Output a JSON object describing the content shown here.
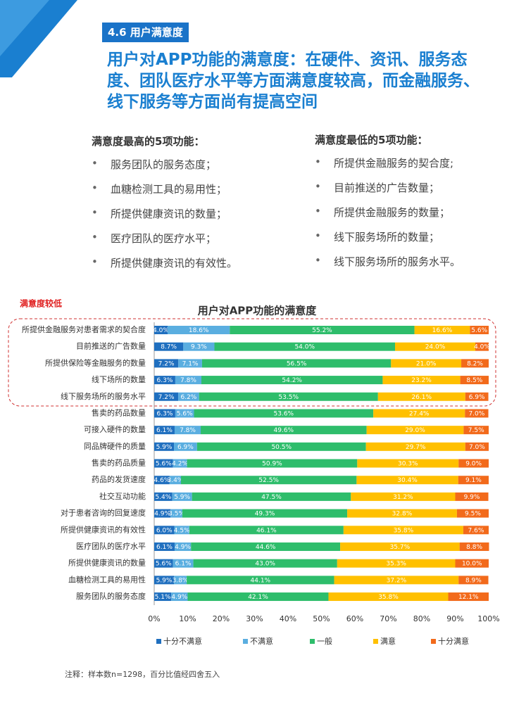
{
  "header": {
    "tag": "4.6 用户满意度",
    "headline": "用户对APP功能的满意度：在硬件、资讯、服务态度、团队医疗水平等方面满意度较高，而金融服务、线下服务等方面尚有提高空间"
  },
  "lists": [
    {
      "title": "满意度最高的5项功能：",
      "items": [
        "服务团队的服务态度；",
        "血糖检测工具的易用性；",
        "所提供健康资讯的数量；",
        "医疗团队的医疗水平；",
        "所提供健康资讯的有效性。"
      ]
    },
    {
      "title": "满意度最低的5项功能：",
      "items": [
        "所提供金融服务的契合度;",
        "目前推送的广告数量；",
        "所提供金融服务的数量；",
        "线下服务场所的数量；",
        "线下服务场所的服务水平。"
      ]
    }
  ],
  "note": "注释：样本数n=1298，百分比值经四舍五入",
  "chart_data": {
    "type": "bar",
    "orientation": "horizontal",
    "stacked": true,
    "title": "用户对APP功能的满意度",
    "annotation": "满意度较低",
    "legend": "bottom",
    "categories": [
      "所提供金融服务对患者需求的契合度",
      "目前推送的广告数量",
      "所提供保险等金融服务的数量",
      "线下场所的数量",
      "线下服务场所的服务水平",
      "售卖的药品数量",
      "可接入硬件的数量",
      "同品牌硬件的质量",
      "售卖的药品质量",
      "药品的发货速度",
      "社交互动功能",
      "对于患者咨询的回复速度",
      "所提供健康资讯的有效性",
      "医疗团队的医疗水平",
      "所提供健康资讯的数量",
      "血糖检测工具的易用性",
      "服务团队的服务态度"
    ],
    "series": [
      {
        "name": "十分不满意",
        "color": "#1f6fbf",
        "values": [
          4.0,
          8.7,
          7.2,
          6.3,
          7.2,
          6.3,
          6.1,
          5.9,
          5.6,
          4.6,
          5.4,
          4.9,
          6.0,
          6.1,
          5.6,
          5.9,
          5.1
        ],
        "value_labels": [
          "4.0%",
          "8.7%",
          "7.2%",
          "6.3%",
          "7.2%",
          "6.3%",
          "6.1%",
          "5.9%",
          "5.6%",
          "4.6%",
          "5.4%",
          "4.9%",
          "6.0%",
          "6.1%",
          "5.6%",
          "5.9%",
          "5.1%"
        ]
      },
      {
        "name": "不满意",
        "color": "#5aaee0",
        "values": [
          18.6,
          9.3,
          7.1,
          7.8,
          6.2,
          5.6,
          7.8,
          6.9,
          4.2,
          3.4,
          5.9,
          3.5,
          4.5,
          4.9,
          6.1,
          3.8,
          4.9
        ],
        "value_labels": [
          "18.6%",
          "9.3%",
          "7.1%",
          "7.8%",
          "6.2%",
          "5.6%",
          "7.8%",
          "6.9%",
          "4.2%",
          "3.4%",
          "5.9%",
          "3.5%",
          "4.5%",
          "4.9%",
          "6.1%",
          "3.8%",
          "4.9%"
        ]
      },
      {
        "name": "一般",
        "color": "#2ebd6b",
        "values": [
          55.2,
          54.0,
          56.5,
          54.2,
          53.5,
          53.6,
          49.6,
          50.5,
          50.9,
          52.5,
          47.5,
          49.3,
          46.1,
          44.6,
          43.0,
          44.1,
          42.1
        ],
        "value_labels": [
          "55.2%",
          "54.0%",
          "56.5%",
          "54.2%",
          "53.5%",
          "53.6%",
          "49.6%",
          "50.5%",
          "50.9%",
          "52.5%",
          "47.5%",
          "49.3%",
          "46.1%",
          "44.6%",
          "43.0%",
          "44.1%",
          "42.1%"
        ]
      },
      {
        "name": "满意",
        "color": "#ffc000",
        "values": [
          16.6,
          24.0,
          21.0,
          23.2,
          26.1,
          27.4,
          29.0,
          29.7,
          30.3,
          30.4,
          31.2,
          32.8,
          35.8,
          35.7,
          35.3,
          37.2,
          35.8
        ],
        "value_labels": [
          "16.6%",
          "24.0%",
          "21.0%",
          "23.2%",
          "26.1%",
          "27.4%",
          "29.0%",
          "29.7%",
          "30.3%",
          "30.4%",
          "31.2%",
          "32.8%",
          "35.8%",
          "35.7%",
          "35.3%",
          "37.2%",
          "35.8%"
        ]
      },
      {
        "name": "十分满意",
        "color": "#f26a1b",
        "values": [
          5.6,
          4.0,
          8.2,
          8.5,
          6.9,
          7.0,
          7.5,
          7.0,
          9.0,
          9.1,
          9.9,
          9.5,
          7.6,
          8.8,
          10.0,
          8.9,
          12.1
        ],
        "value_labels": [
          "5.6%",
          "4.0%",
          "8.2%",
          "8.5%",
          "6.9%",
          "7.0%",
          "7.5%",
          "7.0%",
          "9.0%",
          "9.1%",
          "9.9%",
          "9.5%",
          "7.6%",
          "8.8%",
          "10.0%",
          "8.9%",
          "12.1%"
        ]
      }
    ],
    "xlim": [
      0,
      100
    ],
    "xticks": [
      {
        "value": 0,
        "label": "0%"
      },
      {
        "value": 10,
        "label": "10%"
      },
      {
        "value": 20,
        "label": "20%"
      },
      {
        "value": 30,
        "label": "30%"
      },
      {
        "value": 40,
        "label": "40%"
      },
      {
        "value": 50,
        "label": "50%"
      },
      {
        "value": 60,
        "label": "60%"
      },
      {
        "value": 70,
        "label": "70%"
      },
      {
        "value": 80,
        "label": "80%"
      },
      {
        "value": 90,
        "label": "90%"
      },
      {
        "value": 100,
        "label": "100%"
      }
    ]
  }
}
